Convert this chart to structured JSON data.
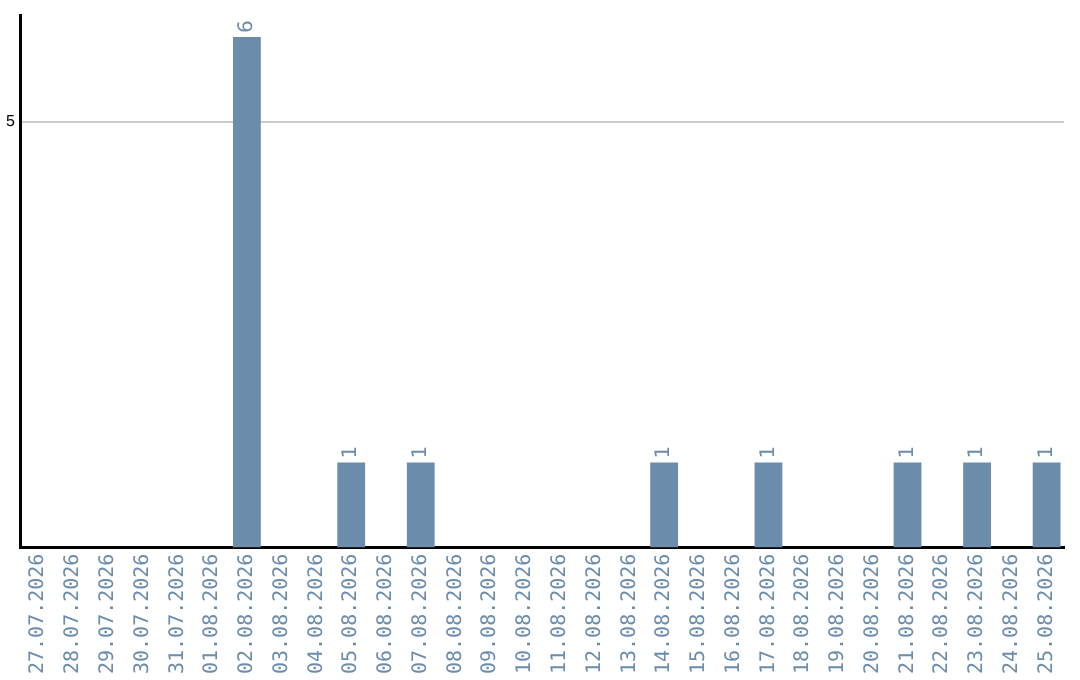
{
  "chart_data": {
    "type": "bar",
    "categories": [
      "27.07.2026",
      "28.07.2026",
      "29.07.2026",
      "30.07.2026",
      "31.07.2026",
      "01.08.2026",
      "02.08.2026",
      "03.08.2026",
      "04.08.2026",
      "05.08.2026",
      "06.08.2026",
      "07.08.2026",
      "08.08.2026",
      "09.08.2026",
      "10.08.2026",
      "11.08.2026",
      "12.08.2026",
      "13.08.2026",
      "14.08.2026",
      "15.08.2026",
      "16.08.2026",
      "17.08.2026",
      "18.08.2026",
      "19.08.2026",
      "20.08.2026",
      "21.08.2026",
      "22.08.2026",
      "23.08.2026",
      "24.08.2026",
      "25.08.2026"
    ],
    "values": [
      0,
      0,
      0,
      0,
      0,
      0,
      6,
      0,
      0,
      1,
      0,
      1,
      0,
      0,
      0,
      0,
      0,
      0,
      1,
      0,
      0,
      1,
      0,
      0,
      0,
      1,
      0,
      1,
      0,
      1
    ],
    "value_labels": [
      null,
      null,
      null,
      null,
      null,
      null,
      "6",
      null,
      null,
      "1",
      null,
      "1",
      null,
      null,
      null,
      null,
      null,
      null,
      "1",
      null,
      null,
      "1",
      null,
      null,
      null,
      "1",
      null,
      "1",
      null,
      "1"
    ],
    "color": "#6b8cab",
    "ylim": [
      0,
      6.25
    ],
    "yticks": [
      5
    ],
    "grid": "y",
    "legend": false
  }
}
